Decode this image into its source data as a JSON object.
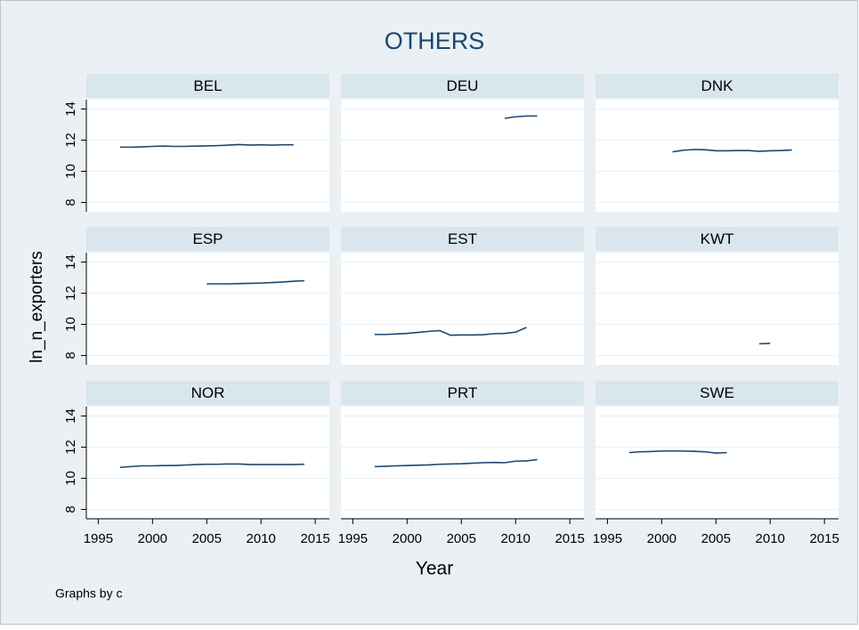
{
  "title": "OTHERS",
  "x_label": "Year",
  "y_label": "ln_n_exporters",
  "note": "Graphs by c",
  "axes": {
    "xlim": [
      1993.9,
      2016.3
    ],
    "xticks": [
      1995,
      2000,
      2005,
      2010,
      2015
    ],
    "ylim": [
      7.4,
      14.6
    ],
    "yticks": [
      8,
      10,
      12,
      14
    ],
    "grid": true,
    "color": "#1a476f"
  },
  "chart_data": [
    {
      "type": "line",
      "title": "BEL",
      "x": [
        1997,
        1998,
        1999,
        2000,
        2001,
        2002,
        2003,
        2004,
        2005,
        2006,
        2007,
        2008,
        2009,
        2010,
        2011,
        2012,
        2013
      ],
      "values": [
        11.55,
        11.55,
        11.57,
        11.6,
        11.62,
        11.6,
        11.6,
        11.62,
        11.63,
        11.65,
        11.68,
        11.72,
        11.68,
        11.7,
        11.68,
        11.7,
        11.7
      ]
    },
    {
      "type": "line",
      "title": "DEU",
      "x": [
        2009,
        2010,
        2011,
        2012
      ],
      "values": [
        13.4,
        13.5,
        13.55,
        13.55
      ]
    },
    {
      "type": "line",
      "title": "DNK",
      "x": [
        2001,
        2002,
        2003,
        2004,
        2005,
        2006,
        2007,
        2008,
        2009,
        2010,
        2011,
        2012
      ],
      "values": [
        11.25,
        11.35,
        11.4,
        11.38,
        11.32,
        11.32,
        11.33,
        11.33,
        11.28,
        11.32,
        11.33,
        11.37
      ]
    },
    {
      "type": "line",
      "title": "ESP",
      "x": [
        2005,
        2006,
        2007,
        2008,
        2009,
        2010,
        2011,
        2012,
        2013,
        2014
      ],
      "values": [
        12.6,
        12.6,
        12.6,
        12.62,
        12.63,
        12.65,
        12.68,
        12.72,
        12.77,
        12.8
      ]
    },
    {
      "type": "line",
      "title": "EST",
      "x": [
        1997,
        1998,
        1999,
        2000,
        2001,
        2002,
        2003,
        2004,
        2005,
        2006,
        2007,
        2008,
        2009,
        2010,
        2011
      ],
      "values": [
        9.35,
        9.35,
        9.38,
        9.42,
        9.48,
        9.55,
        9.6,
        9.3,
        9.32,
        9.32,
        9.33,
        9.4,
        9.42,
        9.5,
        9.8
      ]
    },
    {
      "type": "line",
      "title": "KWT",
      "x": [
        2009,
        2010
      ],
      "values": [
        8.75,
        8.78
      ]
    },
    {
      "type": "line",
      "title": "NOR",
      "x": [
        1997,
        1998,
        1999,
        2000,
        2001,
        2002,
        2003,
        2004,
        2005,
        2006,
        2007,
        2008,
        2009,
        2010,
        2011,
        2012,
        2013,
        2014
      ],
      "values": [
        10.7,
        10.75,
        10.8,
        10.8,
        10.82,
        10.82,
        10.85,
        10.88,
        10.9,
        10.9,
        10.92,
        10.92,
        10.88,
        10.88,
        10.88,
        10.88,
        10.88,
        10.9
      ]
    },
    {
      "type": "line",
      "title": "PRT",
      "x": [
        1997,
        1998,
        1999,
        2000,
        2001,
        2002,
        2003,
        2004,
        2005,
        2006,
        2007,
        2008,
        2009,
        2010,
        2011,
        2012
      ],
      "values": [
        10.75,
        10.77,
        10.8,
        10.82,
        10.84,
        10.86,
        10.9,
        10.92,
        10.93,
        10.97,
        11.0,
        11.02,
        11.0,
        11.1,
        11.12,
        11.2
      ]
    },
    {
      "type": "line",
      "title": "SWE",
      "x": [
        1997,
        1998,
        1999,
        2000,
        2001,
        2002,
        2003,
        2004,
        2005,
        2006
      ],
      "values": [
        11.65,
        11.7,
        11.72,
        11.75,
        11.75,
        11.75,
        11.73,
        11.7,
        11.62,
        11.65
      ]
    }
  ]
}
